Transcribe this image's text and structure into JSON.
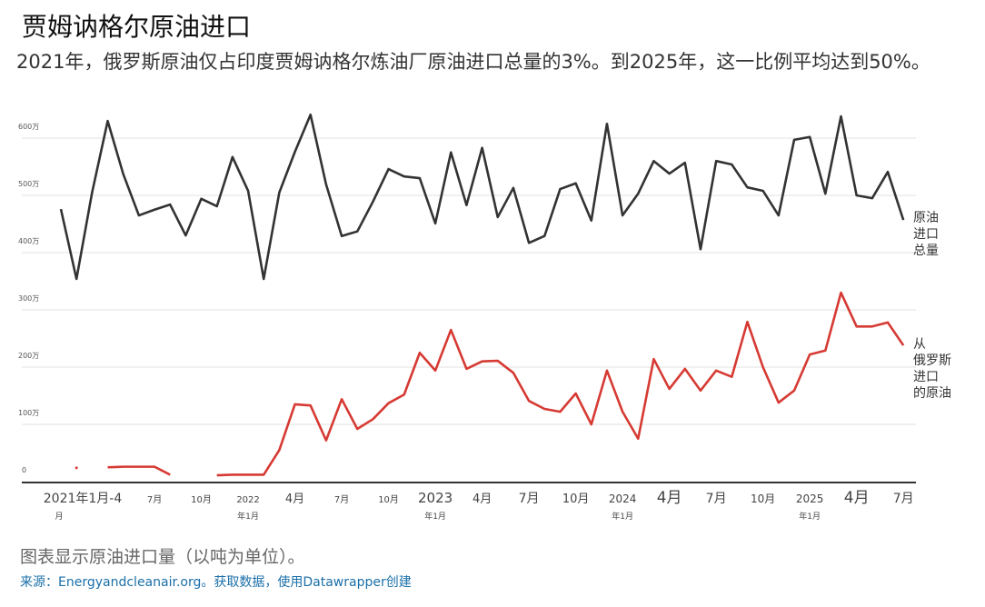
{
  "title": "贾姆讷格尔原油进口",
  "subtitle": "2021年，俄罗斯原油仅占印度贾姆讷格尔炼油厂原油进口总量的3%。到2025年，这一比例平均达到50%。",
  "notes": "图表显示原油进口量（以吨为单位）。",
  "source": "来源：Energyandcleanair.org。获取数据，使用Datawrapper创建",
  "chart_data": {
    "type": "line",
    "x_start": "2021-01",
    "x_end": "2025-07",
    "yticks": [
      {
        "v": 0,
        "label": "0"
      },
      {
        "v": 1,
        "label": "100万"
      },
      {
        "v": 2,
        "label": "200万"
      },
      {
        "v": 3,
        "label": "300万"
      },
      {
        "v": 4,
        "label": "400万"
      },
      {
        "v": 5,
        "label": "500万"
      },
      {
        "v": 6,
        "label": "600万"
      }
    ],
    "ylim": [
      0,
      6
    ],
    "xticks": [
      {
        "i": 0,
        "l1": "2021年1月-4",
        "l2": "月",
        "size": 14
      },
      {
        "i": 6,
        "l1": "7月",
        "size": 10
      },
      {
        "i": 9,
        "l1": "10月",
        "size": 10
      },
      {
        "i": 12,
        "l1": "2022",
        "l2": "年1月",
        "size": 10
      },
      {
        "i": 15,
        "l1": "4月",
        "size": 13
      },
      {
        "i": 18,
        "l1": "7月",
        "size": 10
      },
      {
        "i": 21,
        "l1": "10月",
        "size": 10
      },
      {
        "i": 24,
        "l1": "2023",
        "l2": "年1月",
        "size": 15
      },
      {
        "i": 27,
        "l1": "4月",
        "size": 13
      },
      {
        "i": 30,
        "l1": "7月",
        "size": 14
      },
      {
        "i": 33,
        "l1": "10月",
        "size": 13
      },
      {
        "i": 36,
        "l1": "2024",
        "l2": "年1月",
        "size": 12
      },
      {
        "i": 39,
        "l1": "4月",
        "size": 17
      },
      {
        "i": 42,
        "l1": "7月",
        "size": 14
      },
      {
        "i": 45,
        "l1": "10月",
        "size": 12
      },
      {
        "i": 48,
        "l1": "2025",
        "l2": "年1月",
        "size": 12
      },
      {
        "i": 51,
        "l1": "4月",
        "size": 17
      },
      {
        "i": 54,
        "l1": "7月",
        "size": 14
      }
    ],
    "series": [
      {
        "name": "原油进口总量",
        "label_lines": [
          "原油",
          "进口",
          "总量"
        ],
        "color": "#333333",
        "values": [
          4.76,
          3.54,
          5.05,
          6.3,
          5.37,
          4.65,
          4.75,
          4.84,
          4.3,
          4.94,
          4.81,
          5.67,
          5.08,
          3.54,
          5.05,
          5.76,
          6.41,
          5.19,
          4.29,
          4.37,
          4.89,
          5.46,
          5.33,
          5.3,
          4.51,
          5.75,
          4.83,
          5.83,
          4.62,
          5.13,
          4.17,
          4.29,
          5.11,
          5.21,
          4.56,
          6.25,
          4.65,
          5.03,
          5.6,
          5.38,
          5.57,
          4.06,
          5.6,
          5.54,
          5.14,
          5.08,
          4.65,
          5.97,
          6.02,
          5.03,
          6.38,
          5.0,
          4.95,
          5.41,
          4.57
        ]
      },
      {
        "name": "从俄罗斯进口的原油",
        "label_lines": [
          "从",
          "俄罗斯",
          "进口",
          "的原油"
        ],
        "color": "#d63a33",
        "values": [
          null,
          0.24,
          null,
          0.25,
          0.26,
          0.26,
          0.26,
          0.12,
          null,
          null,
          0.11,
          0.12,
          0.12,
          0.12,
          0.55,
          1.35,
          1.33,
          0.72,
          1.44,
          0.92,
          1.09,
          1.37,
          1.52,
          2.25,
          1.94,
          2.65,
          1.97,
          2.1,
          2.11,
          1.9,
          1.41,
          1.27,
          1.22,
          1.54,
          1.0,
          1.94,
          1.22,
          0.75,
          2.14,
          1.62,
          1.97,
          1.59,
          1.94,
          1.83,
          2.79,
          2.0,
          1.38,
          1.59,
          2.22,
          2.29,
          3.3,
          2.71,
          2.71,
          2.78,
          2.38
        ]
      }
    ]
  }
}
